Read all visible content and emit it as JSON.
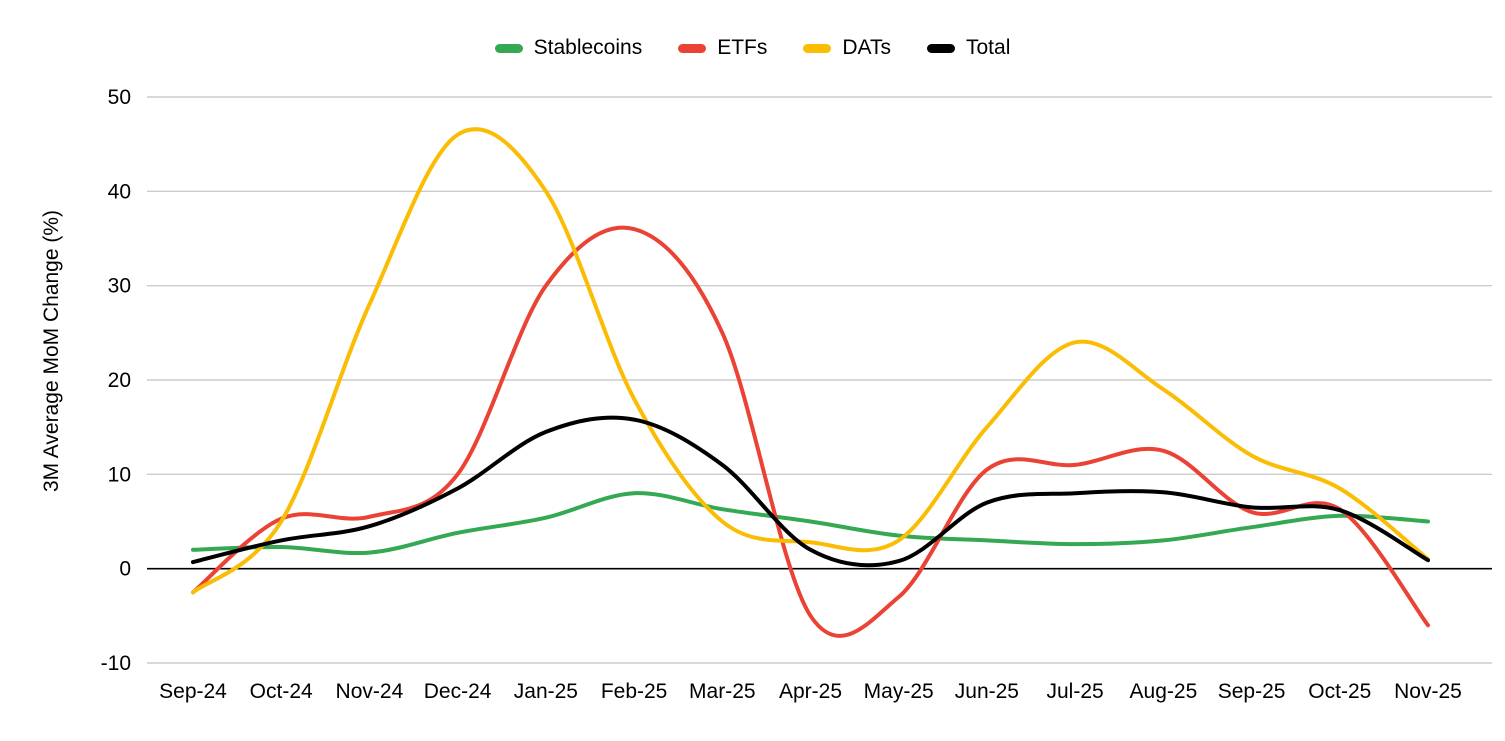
{
  "colors": {
    "background": "#ffffff",
    "grid": "#cccccc",
    "zero_axis": "#000000",
    "text": "#000000"
  },
  "chart_data": {
    "type": "line",
    "title": "",
    "xlabel": "",
    "ylabel": "3M Average MoM Change (%)",
    "ylim": [
      -10,
      50
    ],
    "yticks": [
      -10,
      0,
      10,
      20,
      30,
      40,
      50
    ],
    "grid": true,
    "legend_position": "top",
    "x": [
      "Sep-24",
      "Oct-24",
      "Nov-24",
      "Dec-24",
      "Jan-25",
      "Feb-25",
      "Mar-25",
      "Apr-25",
      "May-25",
      "Jun-25",
      "Jul-25",
      "Aug-25",
      "Sep-25",
      "Oct-25",
      "Nov-25"
    ],
    "series": [
      {
        "name": "Stablecoins",
        "color": "#34a853",
        "values": [
          2,
          2.3,
          1.7,
          3.8,
          5.4,
          8,
          6.3,
          5,
          3.5,
          3,
          2.6,
          3,
          4.4,
          5.6,
          5
        ]
      },
      {
        "name": "ETFs",
        "color": "#ea4335",
        "values": [
          -2.5,
          5.3,
          5.5,
          10,
          30,
          36,
          25,
          -5,
          -3,
          10.5,
          11,
          12.5,
          6,
          6.3,
          -6
        ]
      },
      {
        "name": "DATs",
        "color": "#fbbc04",
        "values": [
          -2.5,
          5,
          28,
          46,
          40,
          18,
          5,
          2.8,
          3,
          15,
          24,
          19,
          12,
          8.5,
          1
        ]
      },
      {
        "name": "Total",
        "color": "#000000",
        "values": [
          0.7,
          3,
          4.5,
          8.5,
          14.5,
          15.8,
          11,
          2,
          0.8,
          7,
          8,
          8.1,
          6.5,
          6.2,
          0.9
        ]
      }
    ]
  }
}
